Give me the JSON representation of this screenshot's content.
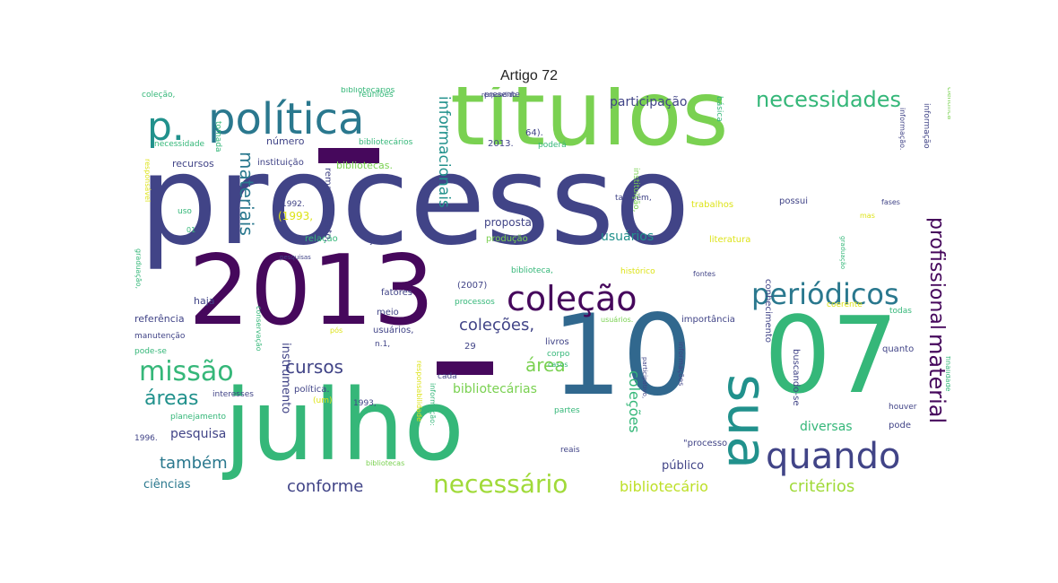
{
  "title": "Artigo 72",
  "palette": {
    "dark_purple": "#46085c",
    "indigo": "#414487",
    "blue": "#2a788e",
    "teal": "#21918c",
    "green": "#35b779",
    "lime": "#7ad151",
    "yellow": "#dde318"
  },
  "words": [
    {
      "text": "processo",
      "color": "#414487"
    },
    {
      "text": "títulos",
      "color": "#7ad151"
    },
    {
      "text": "julho",
      "color": "#35b779"
    },
    {
      "text": "2013",
      "color": "#46085c"
    },
    {
      "text": "10",
      "color": "#31688e"
    },
    {
      "text": "07",
      "color": "#35b779"
    },
    {
      "text": "política",
      "color": "#2a788e"
    },
    {
      "text": "p.",
      "color": "#21918c"
    },
    {
      "text": "coleção",
      "color": "#46085c"
    },
    {
      "text": "periódicos",
      "color": "#2a788e"
    },
    {
      "text": "sua",
      "color": "#21918c"
    },
    {
      "text": "quando",
      "color": "#414487"
    },
    {
      "text": "necessário",
      "color": "#a0da39"
    },
    {
      "text": "missão",
      "color": "#35b779"
    },
    {
      "text": "necessidades",
      "color": "#35b779"
    },
    {
      "text": "material",
      "color": "#46085c"
    },
    {
      "text": "profissional",
      "color": "#46085c"
    },
    {
      "text": "materiais",
      "color": "#2a788e"
    },
    {
      "text": "informacionais",
      "color": "#21918c"
    },
    {
      "text": "cursos",
      "color": "#414487"
    },
    {
      "text": "coleções,",
      "color": "#414487"
    },
    {
      "text": "área",
      "color": "#7ad151"
    },
    {
      "text": "áreas",
      "color": "#21918c"
    },
    {
      "text": "também",
      "color": "#2a788e"
    },
    {
      "text": "conforme",
      "color": "#414487"
    },
    {
      "text": "critérios",
      "color": "#a0da39"
    },
    {
      "text": "coleções",
      "color": "#35b779"
    },
    {
      "text": "bibliotecário",
      "color": "#bddf26"
    },
    {
      "text": "participação",
      "color": "#414487"
    },
    {
      "text": "usuários",
      "color": "#21918c"
    },
    {
      "text": "diversas",
      "color": "#35b779"
    },
    {
      "text": "bibliotecárias",
      "color": "#7ad151"
    },
    {
      "text": "pesquisa",
      "color": "#414487"
    },
    {
      "text": "ciências",
      "color": "#2a788e"
    },
    {
      "text": "público",
      "color": "#414487"
    },
    {
      "text": "instrumento",
      "color": "#414487"
    },
    {
      "text": "proposta",
      "color": "#414487"
    },
    {
      "text": "referência",
      "color": "#414487"
    },
    {
      "text": "haja",
      "color": "#414487"
    },
    {
      "text": "número",
      "color": "#414487"
    },
    {
      "text": "recursos",
      "color": "#414487"
    },
    {
      "text": "instituição",
      "color": "#414487"
    },
    {
      "text": "bibliotecas.",
      "color": "#7ad151"
    },
    {
      "text": "bibliotecários",
      "color": "#35b779"
    },
    {
      "text": "2013.",
      "color": "#414487"
    },
    {
      "text": "(1993,",
      "color": "#dde318"
    },
    {
      "text": "jan.",
      "color": "#414487"
    },
    {
      "text": "relação",
      "color": "#35b779"
    },
    {
      "text": "produção",
      "color": "#7ad151"
    },
    {
      "text": "fatores",
      "color": "#414487"
    },
    {
      "text": "(2007)",
      "color": "#414487"
    },
    {
      "text": "processos",
      "color": "#35b779"
    },
    {
      "text": "meio",
      "color": "#414487"
    },
    {
      "text": "usuários,",
      "color": "#414487"
    },
    {
      "text": "n.1,",
      "color": "#414487"
    },
    {
      "text": "29",
      "color": "#414487"
    },
    {
      "text": "livros",
      "color": "#414487"
    },
    {
      "text": "corpo",
      "color": "#35b779"
    },
    {
      "text": "pós",
      "color": "#dde318"
    },
    {
      "text": "manutenção",
      "color": "#414487"
    },
    {
      "text": "pode-se",
      "color": "#35b779"
    },
    {
      "text": "política.",
      "color": "#414487"
    },
    {
      "text": "(um)",
      "color": "#dde318"
    },
    {
      "text": "1993,",
      "color": "#414487"
    },
    {
      "text": "interesses",
      "color": "#414487"
    },
    {
      "text": "planejamento",
      "color": "#35b779"
    },
    {
      "text": "1996.",
      "color": "#414487"
    },
    {
      "text": "importância",
      "color": "#414487"
    },
    {
      "text": "coerente",
      "color": "#dde318"
    },
    {
      "text": "todas",
      "color": "#35b779"
    },
    {
      "text": "quanto",
      "color": "#414487"
    },
    {
      "text": "pode",
      "color": "#414487"
    },
    {
      "text": "houver",
      "color": "#414487"
    },
    {
      "text": "partes",
      "color": "#35b779"
    },
    {
      "text": "reais",
      "color": "#414487"
    },
    {
      "text": "\"processo",
      "color": "#414487"
    },
    {
      "text": "casos",
      "color": "#35b779"
    },
    {
      "text": "literatura",
      "color": "#dde318"
    },
    {
      "text": "trabalhos",
      "color": "#dde318"
    },
    {
      "text": "possui",
      "color": "#414487"
    },
    {
      "text": "mas",
      "color": "#dde318"
    },
    {
      "text": "fases",
      "color": "#414487"
    },
    {
      "text": "histórico",
      "color": "#dde318"
    },
    {
      "text": "fontes",
      "color": "#414487"
    },
    {
      "text": "biblioteca,",
      "color": "#35b779"
    },
    {
      "text": "presente",
      "color": "#414487"
    },
    {
      "text": "reuniões",
      "color": "#35b779"
    },
    {
      "text": "coleção,",
      "color": "#35b779"
    },
    {
      "text": "necessidade",
      "color": "#35b779"
    },
    {
      "text": "tomada",
      "color": "#35b779"
    },
    {
      "text": "responsável",
      "color": "#dde318"
    },
    {
      "text": "uso",
      "color": "#35b779"
    },
    {
      "text": "01",
      "color": "#35b779"
    },
    {
      "text": "1992.",
      "color": "#414487"
    },
    {
      "text": "pesquisas",
      "color": "#414487"
    },
    {
      "text": "graduação,",
      "color": "#35b779"
    },
    {
      "text": "remanejamento,",
      "color": "#414487"
    },
    {
      "text": "também,",
      "color": "#414487"
    },
    {
      "text": "64).",
      "color": "#414487"
    },
    {
      "text": "poderá",
      "color": "#35b779"
    },
    {
      "text": "básica",
      "color": "#35b779"
    },
    {
      "text": "informação.",
      "color": "#414487"
    },
    {
      "text": "informação:",
      "color": "#35b779"
    },
    {
      "text": "instituição,",
      "color": "#7ad151"
    },
    {
      "text": "conhecimento",
      "color": "#414487"
    },
    {
      "text": "buscando-se",
      "color": "#414487"
    },
    {
      "text": "informações",
      "color": "#414487"
    },
    {
      "text": "finalidade",
      "color": "#35b779"
    },
    {
      "text": "científica",
      "color": "#7ad151"
    },
    {
      "text": "bibliotecas",
      "color": "#7ad151"
    },
    {
      "text": "responsabilidade",
      "color": "#dde318"
    },
    {
      "text": "usuários.",
      "color": "#7ad151"
    },
    {
      "text": "conservação",
      "color": "#35b779"
    },
    {
      "text": "cada",
      "color": "#414487"
    },
    {
      "text": "respondido",
      "color": "#414487"
    },
    {
      "text": "participativo,",
      "color": "#414487"
    },
    {
      "text": "graduação",
      "color": "#35b779"
    },
    {
      "text": "bibliotecários",
      "color": "#35b779"
    },
    {
      "text": "informação",
      "color": "#414487"
    }
  ]
}
